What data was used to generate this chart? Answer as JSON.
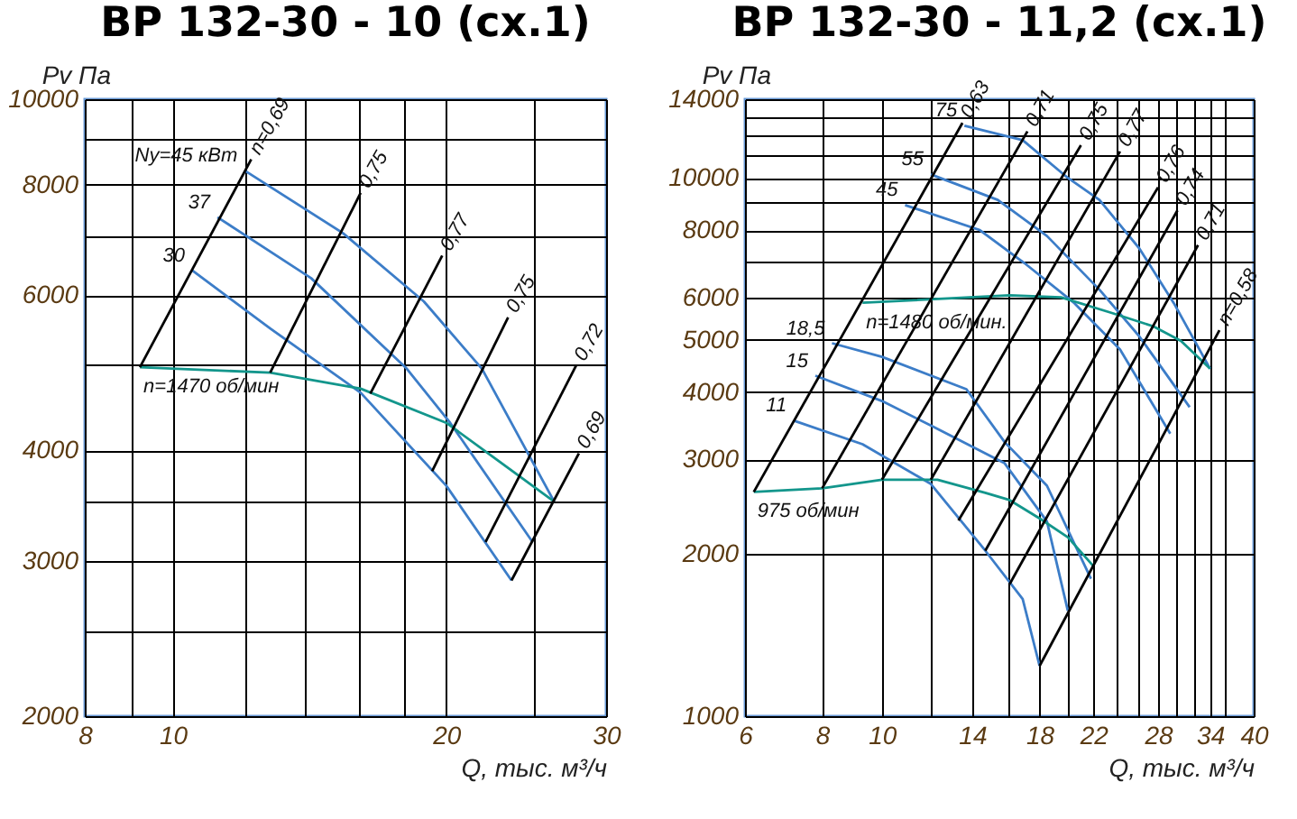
{
  "chart_data": [
    {
      "type": "line",
      "title": "ВР 132-30 - 10 (сх.1)",
      "xlabel": "Q, тыс. м³/ч",
      "ylabel": "Pv Па",
      "log": "xy",
      "grid": true,
      "xlim": [
        8,
        30
      ],
      "xticks": [
        8,
        {
          "value": 9,
          "label": null
        },
        10,
        {
          "value": 12,
          "label": null
        },
        {
          "value": 14,
          "label": null
        },
        {
          "value": 16,
          "label": null
        },
        {
          "value": 18,
          "label": null
        },
        20,
        {
          "value": 25,
          "label": null
        },
        30
      ],
      "ylim": [
        2000,
        10000
      ],
      "yticks": [
        2000,
        {
          "value": 2500,
          "label": null
        },
        3000,
        {
          "value": 3500,
          "label": null
        },
        4000,
        {
          "value": 5000,
          "label": null
        },
        6000,
        {
          "value": 7000,
          "label": null
        },
        8000,
        {
          "value": 9000,
          "label": null
        },
        10000
      ],
      "series": [
        {
          "name": "Ny=45 кВт",
          "color": "#3c7dc8",
          "x": [
            12,
            15.4,
            18.9,
            21.9,
            26.3
          ],
          "values": [
            8300,
            7050,
            5900,
            4950,
            3500
          ]
        },
        {
          "name": "37",
          "color": "#3c7dc8",
          "x": [
            11.2,
            14.2,
            18.1,
            20.2,
            24.9
          ],
          "values": [
            7350,
            6270,
            4950,
            4300,
            3150
          ]
        },
        {
          "name": "30",
          "color": "#3c7dc8",
          "x": [
            10.5,
            12.8,
            16.1,
            20,
            23.6
          ],
          "values": [
            6400,
            5500,
            4650,
            3650,
            2850
          ]
        },
        {
          "name": "n=1470 об/мин",
          "color": "#13968c",
          "x": [
            9.2,
            12.8,
            16.1,
            20,
            24,
            26.3
          ],
          "values": [
            4970,
            4900,
            4700,
            4300,
            3750,
            3500
          ]
        },
        {
          "name": "n=0,69",
          "color": "#000000",
          "x": [
            9.2,
            12.2
          ],
          "values": [
            4970,
            8550
          ]
        },
        {
          "name": "0,75",
          "color": "#000000",
          "x": [
            12.8,
            16.1
          ],
          "values": [
            4900,
            7830
          ]
        },
        {
          "name": "0,77",
          "color": "#000000",
          "x": [
            16.5,
            19.8
          ],
          "values": [
            4640,
            6650
          ]
        },
        {
          "name": "0,75",
          "color": "#000000",
          "x": [
            19.3,
            23.4
          ],
          "values": [
            3790,
            5660
          ]
        },
        {
          "name": "0,72",
          "color": "#000000",
          "x": [
            22.1,
            27.8
          ],
          "values": [
            3150,
            4990
          ]
        },
        {
          "name": "0,69",
          "color": "#000000",
          "x": [
            23.6,
            28
          ],
          "values": [
            2850,
            3970
          ]
        }
      ]
    },
    {
      "type": "line",
      "title": "ВР 132-30 - 11,2 (сх.1)",
      "xlabel": "Q, тыс. м³/ч",
      "ylabel": "Pv Па",
      "log": "xy",
      "grid": true,
      "xlim": [
        6,
        40
      ],
      "xticks": [
        6,
        8,
        10,
        {
          "value": 12,
          "label": null
        },
        14,
        {
          "value": 16,
          "label": null
        },
        18,
        {
          "value": 20,
          "label": null
        },
        22,
        {
          "value": 24,
          "label": null
        },
        {
          "value": 26,
          "label": null
        },
        28,
        {
          "value": 30,
          "label": null
        },
        {
          "value": 32,
          "label": null
        },
        34,
        {
          "value": 36,
          "label": null
        },
        40
      ],
      "ylim": [
        1000,
        14000
      ],
      "yticks": [
        1000,
        2000,
        3000,
        4000,
        5000,
        6000,
        {
          "value": 7000,
          "label": null
        },
        8000,
        {
          "value": 9000,
          "label": null
        },
        10000,
        {
          "value": 11000,
          "label": null
        },
        {
          "value": 12000,
          "label": null
        },
        {
          "value": 13000,
          "label": null
        },
        14000
      ],
      "series": [
        {
          "name": "75",
          "color": "#3c7dc8",
          "x": [
            13.6,
            16.9,
            20,
            22.5,
            26.1,
            29.7,
            34
          ],
          "values": [
            12500,
            11750,
            10000,
            9100,
            7400,
            5850,
            4420
          ]
        },
        {
          "name": "55",
          "color": "#3c7dc8",
          "x": [
            12,
            15.4,
            18.5,
            22.5,
            26.1,
            31.5
          ],
          "values": [
            10150,
            9100,
            7800,
            6200,
            5080,
            3750
          ]
        },
        {
          "name": "45",
          "color": "#3c7dc8",
          "x": [
            10.9,
            14.4,
            17,
            20.5,
            24.3,
            29.3
          ],
          "values": [
            8900,
            8000,
            6950,
            5850,
            4800,
            3350
          ]
        },
        {
          "name": "18,5",
          "color": "#3c7dc8",
          "x": [
            8.3,
            10,
            13.7,
            15.8,
            18.5,
            21.8
          ],
          "values": [
            4930,
            4650,
            4050,
            3230,
            2680,
            1800
          ]
        },
        {
          "name": "15",
          "color": "#3c7dc8",
          "x": [
            7.8,
            10,
            12.1,
            15.8,
            18.5,
            20
          ],
          "values": [
            4290,
            3850,
            3450,
            2950,
            2300,
            1570
          ]
        },
        {
          "name": "11",
          "color": "#3c7dc8",
          "x": [
            7.2,
            9.3,
            12,
            14.7,
            16.9,
            18
          ],
          "values": [
            3540,
            3200,
            2700,
            2030,
            1650,
            1240
          ]
        },
        {
          "name": "n=1480 об/мин.",
          "color": "#13968c",
          "x": [
            9.3,
            16.1,
            19.5,
            23.7,
            27.5,
            30.5,
            34
          ],
          "values": [
            5860,
            6050,
            6000,
            5600,
            5300,
            4980,
            4420
          ]
        },
        {
          "name": "975 об/мин",
          "color": "#13968c",
          "x": [
            6.2,
            8,
            10,
            12.3,
            14.7,
            16.1,
            18,
            20,
            22
          ],
          "values": [
            2610,
            2650,
            2750,
            2750,
            2600,
            2520,
            2330,
            2150,
            1900
          ]
        },
        {
          "name": "0,63",
          "color": "#000000",
          "x": [
            6.2,
            13.5
          ],
          "values": [
            2610,
            12650
          ]
        },
        {
          "name": "0,71",
          "color": "#000000",
          "x": [
            8,
            17.2
          ],
          "values": [
            2650,
            12200
          ]
        },
        {
          "name": "0,75",
          "color": "#000000",
          "x": [
            10,
            21
          ],
          "values": [
            2750,
            11500
          ]
        },
        {
          "name": "0,77",
          "color": "#000000",
          "x": [
            12,
            24.3
          ],
          "values": [
            2750,
            11200
          ]
        },
        {
          "name": "0,76",
          "color": "#000000",
          "x": [
            13.3,
            28
          ],
          "values": [
            2310,
            9600
          ]
        },
        {
          "name": "0,74",
          "color": "#000000",
          "x": [
            14.7,
            30.1
          ],
          "values": [
            2030,
            8700
          ]
        },
        {
          "name": "0,71",
          "color": "#000000",
          "x": [
            16.1,
            32.5
          ],
          "values": [
            1760,
            7500
          ]
        },
        {
          "name": "n=0,58",
          "color": "#000000",
          "x": [
            18,
            35.2
          ],
          "values": [
            1240,
            5210
          ]
        }
      ]
    }
  ]
}
